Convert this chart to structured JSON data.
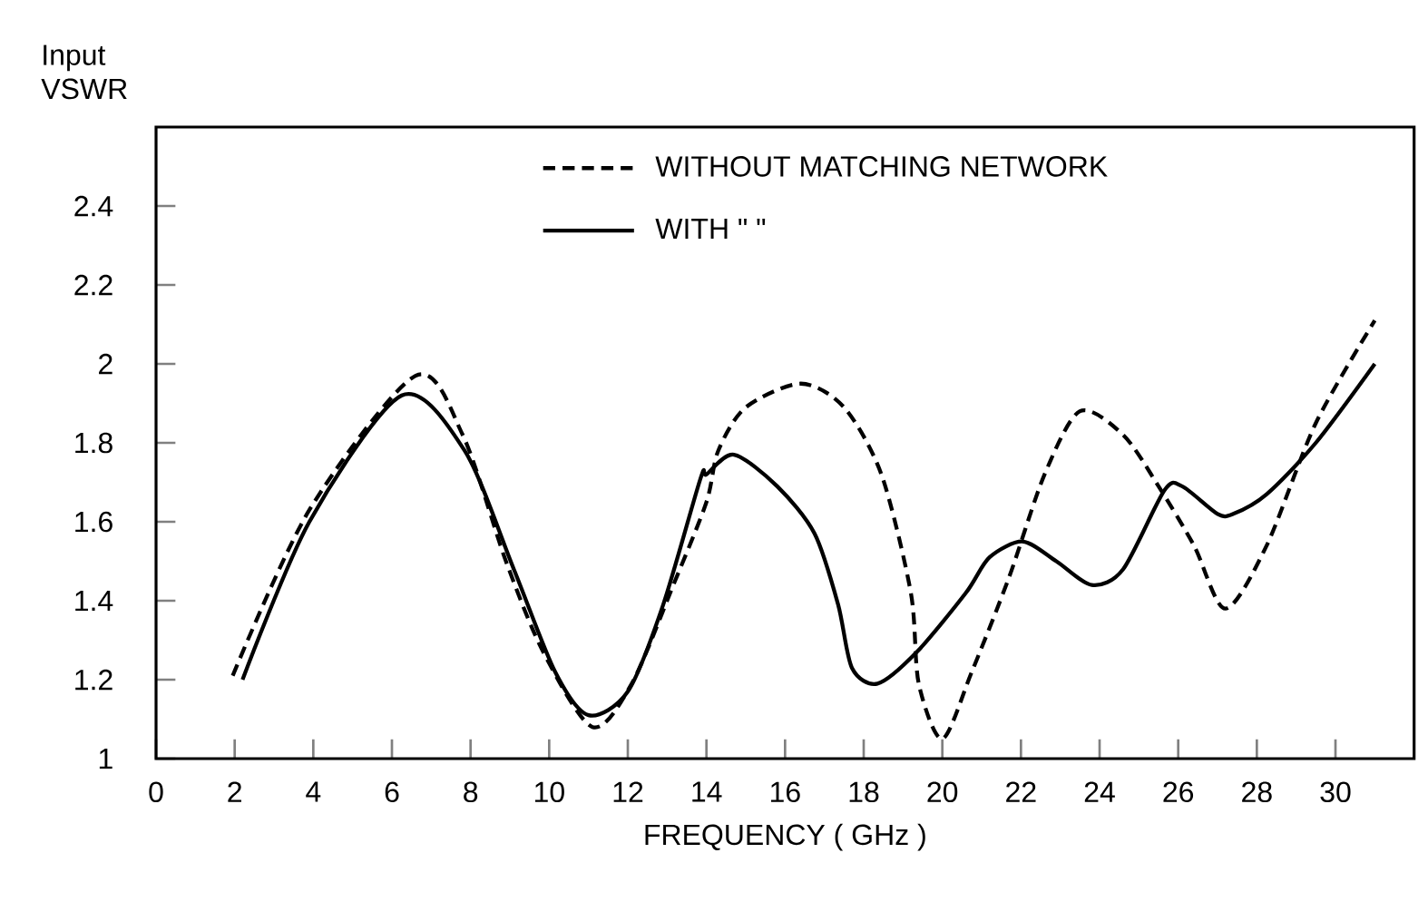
{
  "chart_data": {
    "type": "line",
    "xlabel": "FREQUENCY ( GHz )",
    "ylabel": "Input VSWR",
    "xlim": [
      0,
      32
    ],
    "ylim": [
      1,
      2.6
    ],
    "xticks": [
      0,
      2,
      4,
      6,
      8,
      10,
      12,
      14,
      16,
      18,
      20,
      22,
      24,
      26,
      28,
      30
    ],
    "yticks": [
      1,
      1.2,
      1.4,
      1.6,
      1.8,
      2,
      2.2,
      2.4
    ],
    "grid": false,
    "legend": "top",
    "marker": "none",
    "series": [
      {
        "name": "WITHOUT MATCHING NETWORK",
        "color": "#000000",
        "line_style": "dashed",
        "x": [
          1.95,
          3.9,
          6.6,
          7.8,
          8.9,
          9.85,
          11.1,
          12.1,
          13.2,
          14.0,
          14.3,
          15.0,
          16.4,
          17.5,
          18.45,
          19.2,
          19.4,
          20.0,
          20.75,
          21.7,
          22.6,
          23.5,
          24.6,
          25.5,
          26.4,
          27.2,
          28.25,
          29.5,
          31.0
        ],
        "values": [
          1.21,
          1.63,
          1.97,
          1.82,
          1.5,
          1.27,
          1.08,
          1.19,
          1.45,
          1.65,
          1.78,
          1.89,
          1.95,
          1.89,
          1.72,
          1.42,
          1.19,
          1.05,
          1.22,
          1.46,
          1.72,
          1.88,
          1.82,
          1.69,
          1.54,
          1.38,
          1.54,
          1.85,
          2.11
        ]
      },
      {
        "name": "WITH \"  \"",
        "color": "#000000",
        "line_style": "solid",
        "x": [
          2.2,
          3.9,
          6.25,
          7.85,
          9.1,
          10.15,
          11.0,
          12.0,
          12.9,
          13.85,
          14.0,
          14.7,
          15.8,
          16.75,
          17.35,
          17.7,
          18.35,
          19.35,
          20.6,
          21.2,
          22.05,
          22.9,
          23.8,
          24.6,
          25.65,
          26.1,
          27.0,
          27.4,
          28.25,
          29.5,
          31.0
        ],
        "values": [
          1.2,
          1.6,
          1.92,
          1.78,
          1.48,
          1.22,
          1.11,
          1.17,
          1.39,
          1.71,
          1.72,
          1.77,
          1.69,
          1.57,
          1.39,
          1.23,
          1.19,
          1.27,
          1.42,
          1.51,
          1.55,
          1.5,
          1.44,
          1.48,
          1.68,
          1.69,
          1.62,
          1.62,
          1.67,
          1.8,
          2.0
        ]
      }
    ]
  }
}
